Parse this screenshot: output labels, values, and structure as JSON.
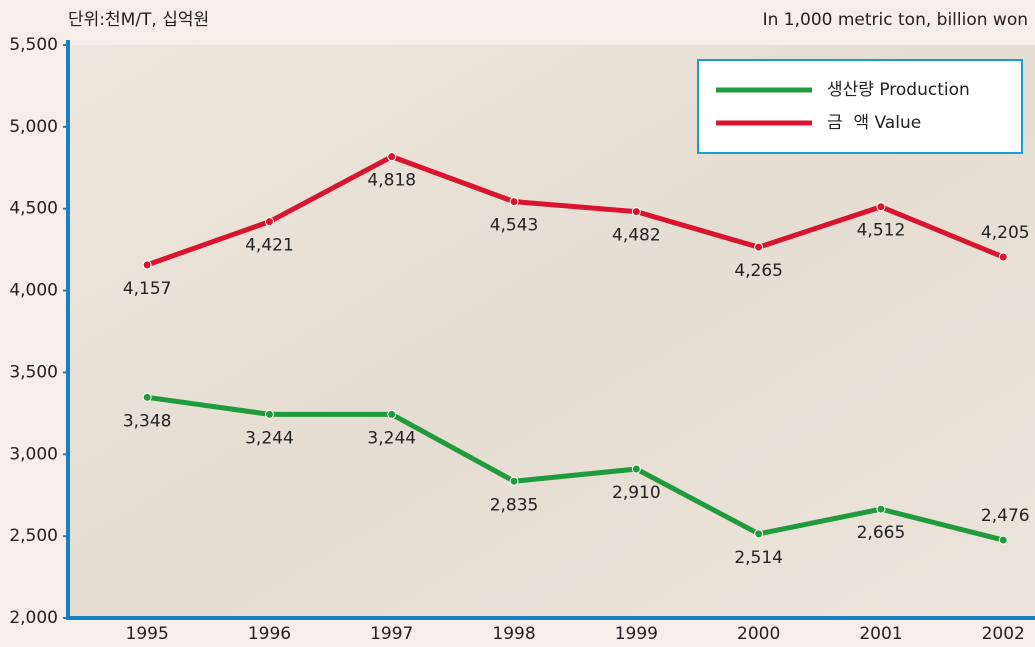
{
  "chart_data": {
    "type": "line",
    "unit_label_ko": "단위:천M/T, 십억원",
    "unit_label_en": "In 1,000 metric ton, billion won",
    "categories": [
      "1995",
      "1996",
      "1997",
      "1998",
      "1999",
      "2000",
      "2001",
      "2002"
    ],
    "series": [
      {
        "name": "생산량 Production",
        "color": "#1f9a3c",
        "values": [
          3348,
          3244,
          3244,
          2835,
          2910,
          2514,
          2665,
          2476
        ],
        "value_labels": [
          "3,348",
          "3,244",
          "3,244",
          "2,835",
          "2,910",
          "2,514",
          "2,665",
          "2,476"
        ]
      },
      {
        "name": "금  액 Value",
        "color": "#d8142e",
        "values": [
          4157,
          4421,
          4818,
          4543,
          4482,
          4265,
          4512,
          4205
        ],
        "value_labels": [
          "4,157",
          "4,421",
          "4,818",
          "4,543",
          "4,482",
          "4,265",
          "4,512",
          "4,205"
        ]
      }
    ],
    "ylim": [
      2000,
      5500
    ],
    "yticks": [
      {
        "value": 2000,
        "label": "2,000"
      },
      {
        "value": 2500,
        "label": "2,500"
      },
      {
        "value": 3000,
        "label": "3,000"
      },
      {
        "value": 3500,
        "label": "3,500"
      },
      {
        "value": 4000,
        "label": "4,000"
      },
      {
        "value": 4500,
        "label": "4,500"
      },
      {
        "value": 5000,
        "label": "5,000"
      },
      {
        "value": 5500,
        "label": "5,500"
      }
    ],
    "legend": "upper right"
  }
}
